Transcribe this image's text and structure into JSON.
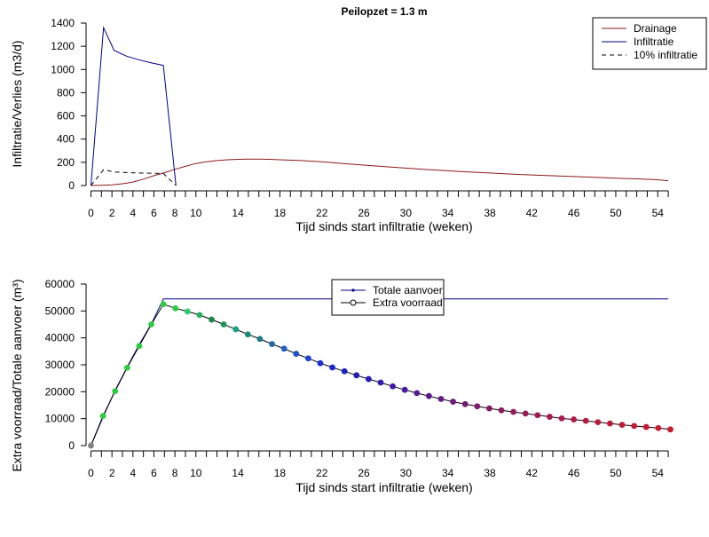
{
  "chart_data": [
    {
      "type": "line",
      "title": "Peilopzet = 1.3 m",
      "xlabel": "Tijd sinds start infiltratie (weken)",
      "ylabel": "Infiltratie/Verlies (m3/d)",
      "xlim": [
        0,
        55.5
      ],
      "ylim": [
        0,
        1400
      ],
      "xticks": [
        0,
        2,
        4,
        6,
        8,
        10,
        14,
        18,
        22,
        26,
        30,
        34,
        38,
        42,
        46,
        50,
        54
      ],
      "yticks": [
        0,
        200,
        400,
        600,
        800,
        1000,
        1200,
        1400
      ],
      "legend_position": "top-right",
      "series": [
        {
          "name": "Drainage",
          "color": "#8b1a1a",
          "style": "solid",
          "x": [
            0,
            1,
            2,
            3,
            4,
            5,
            6,
            7,
            8,
            9,
            10,
            11,
            12,
            13,
            14,
            15,
            16,
            17,
            18,
            20,
            22,
            24,
            26,
            28,
            30,
            32,
            34,
            36,
            38,
            40,
            42,
            44,
            46,
            48,
            50,
            52,
            54,
            55
          ],
          "y": [
            0,
            2,
            6,
            15,
            30,
            55,
            85,
            110,
            140,
            165,
            190,
            205,
            215,
            222,
            226,
            228,
            228,
            226,
            222,
            215,
            204,
            190,
            176,
            162,
            150,
            138,
            127,
            117,
            108,
            99,
            91,
            84,
            77,
            70,
            63,
            57,
            50,
            40
          ]
        },
        {
          "name": "Infiltratie",
          "color": "#00008b",
          "style": "solid",
          "x": [
            0,
            1.2,
            2.2,
            3.4,
            4.5,
            5.6,
            6.9,
            8.1
          ],
          "y": [
            0,
            1360,
            1165,
            1115,
            1085,
            1060,
            1035,
            0
          ]
        },
        {
          "name": "10% infiltratie",
          "color": "#000000",
          "style": "dashed",
          "x": [
            0,
            1.2,
            2.2,
            3.4,
            4.5,
            5.6,
            6.9,
            8.1
          ],
          "y": [
            0,
            136,
            116,
            112,
            108,
            106,
            103,
            0
          ]
        }
      ]
    },
    {
      "type": "line",
      "title": "",
      "xlabel": "Tijd sinds start infiltratie (weken)",
      "ylabel": "Extra voorraad/Totale aanvoer (m³)",
      "xlim": [
        0,
        55.5
      ],
      "ylim": [
        0,
        60000
      ],
      "xticks": [
        0,
        2,
        4,
        6,
        8,
        10,
        14,
        18,
        22,
        26,
        30,
        34,
        38,
        42,
        46,
        50,
        54
      ],
      "yticks": [
        0,
        10000,
        20000,
        30000,
        40000,
        50000,
        60000
      ],
      "legend_position": "top-center",
      "series": [
        {
          "name": "Totale aanvoer",
          "color": "#00008b",
          "style": "solid",
          "x": [
            0,
            1.2,
            2.3,
            3.5,
            4.6,
            5.8,
            6.9,
            55
          ],
          "y": [
            0,
            11000,
            20500,
            29500,
            37500,
            45500,
            54500,
            54500
          ]
        },
        {
          "name": "Extra voorraad",
          "color": "#000000",
          "style": "solid-with-points",
          "x": [
            0,
            1.15,
            2.3,
            3.45,
            4.6,
            5.75,
            6.9,
            8.05,
            9.2,
            10.35,
            11.5,
            12.65,
            13.8,
            14.95,
            16.1,
            17.25,
            18.4,
            19.55,
            20.7,
            21.85,
            23,
            24.15,
            25.3,
            26.45,
            27.6,
            28.75,
            29.9,
            31.05,
            32.2,
            33.35,
            34.5,
            35.65,
            36.8,
            37.95,
            39.1,
            40.25,
            41.4,
            42.55,
            43.7,
            44.85,
            46,
            47.15,
            48.3,
            49.45,
            50.6,
            51.75,
            52.9,
            54.05,
            55.2
          ],
          "y": [
            0,
            11000,
            20200,
            28900,
            37000,
            45000,
            52500,
            51000,
            49800,
            48500,
            46800,
            45000,
            43200,
            41300,
            39600,
            37700,
            36000,
            34100,
            32400,
            30600,
            29000,
            27600,
            26100,
            24700,
            23400,
            22000,
            20700,
            19500,
            18400,
            17300,
            16300,
            15400,
            14600,
            13800,
            13100,
            12500,
            11900,
            11300,
            10700,
            10100,
            9700,
            9200,
            8700,
            8200,
            7700,
            7300,
            6900,
            6500,
            6000
          ],
          "point_colors": [
            "#808080",
            "#2ecc40",
            "#2ecc40",
            "#2ecc40",
            "#2ecc40",
            "#2ecc40",
            "#2ecc40",
            "#2ecc40",
            "#2ecc71",
            "#27ae60",
            "#1e8449",
            "#1a9850",
            "#16a085",
            "#138d75",
            "#1f7a8c",
            "#1f6aa5",
            "#1f5fbf",
            "#1f4fd0",
            "#1f3fd8",
            "#1a2fd8",
            "#1a28cc",
            "#1a22c0",
            "#2020b8",
            "#2a1ab8",
            "#341ab0",
            "#3e1aa8",
            "#481aa0",
            "#521a98",
            "#5c1a90",
            "#661a88",
            "#6e1a80",
            "#761a78",
            "#7e1a70",
            "#861a68",
            "#8e1a62",
            "#961a5c",
            "#9c1a56",
            "#a21a50",
            "#a81a4c",
            "#ae1a48",
            "#b21a44",
            "#b61a40",
            "#ba1a3c",
            "#be1a38",
            "#c21a36",
            "#c41a34",
            "#c61a32",
            "#c81a30",
            "#ca1a2e"
          ]
        }
      ]
    }
  ]
}
